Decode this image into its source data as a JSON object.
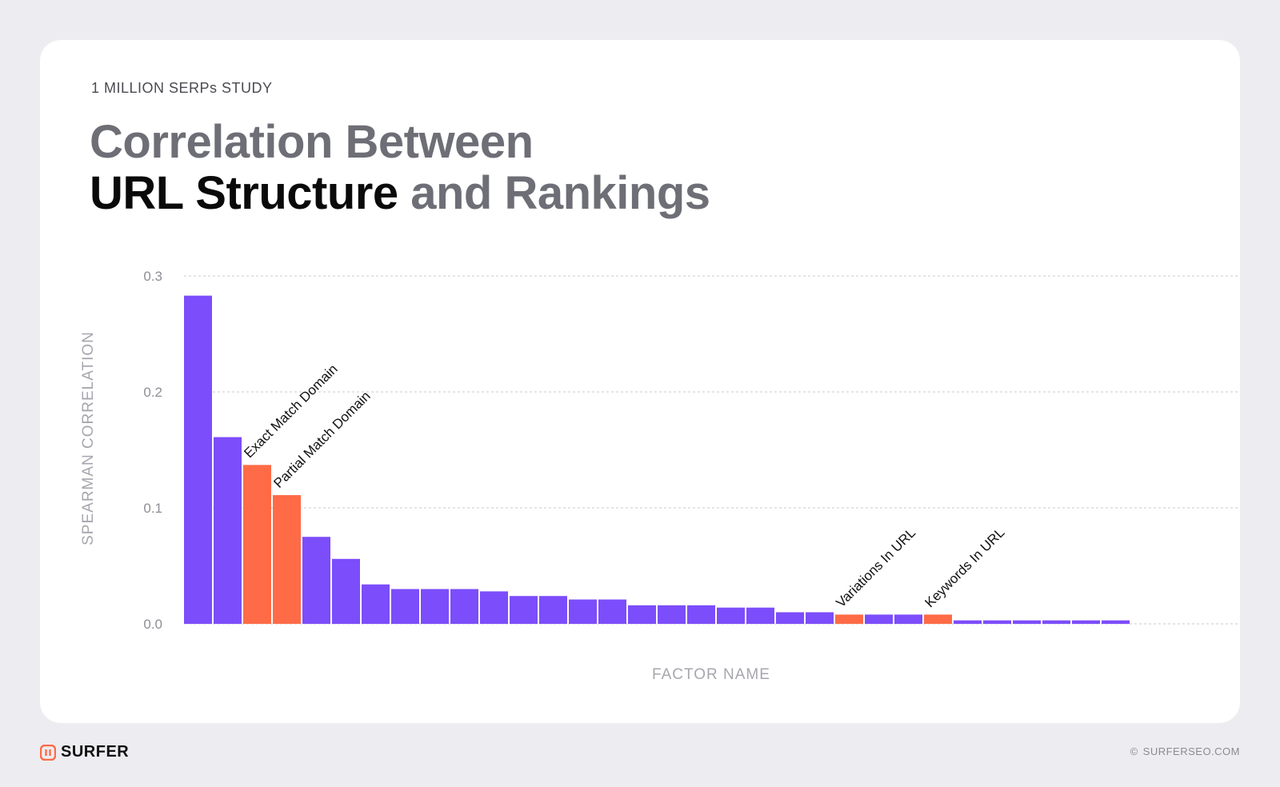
{
  "header": {
    "eyebrow": "1 MILLION SERPs STUDY",
    "title_line1": "Correlation Between",
    "title_strong": "URL Structure",
    "title_rest": " and Rankings"
  },
  "footer": {
    "brand": "SURFER",
    "copyright_symbol": "©",
    "copyright": "SURFERSEO.COM"
  },
  "colors": {
    "bar": "#7c4dfa",
    "highlight": "#ff6b47",
    "card": "#ffffff",
    "background": "#ededf1"
  },
  "chart_data": {
    "type": "bar",
    "xlabel": "FACTOR NAME",
    "ylabel": "SPEARMAN CORRELATION",
    "ylim": [
      0,
      0.3
    ],
    "yticks": [
      "0.0",
      "0.1",
      "0.2",
      "0.3"
    ],
    "grid": true,
    "values": [
      0.283,
      0.161,
      0.137,
      0.111,
      0.075,
      0.056,
      0.034,
      0.03,
      0.03,
      0.03,
      0.028,
      0.024,
      0.024,
      0.021,
      0.021,
      0.016,
      0.016,
      0.016,
      0.014,
      0.014,
      0.01,
      0.01,
      0.008,
      0.008,
      0.008,
      0.008,
      0.003,
      0.003,
      0.003,
      0.003,
      0.003,
      0.003
    ],
    "highlighted": [
      2,
      3,
      22,
      25
    ],
    "annotations": [
      {
        "index": 2,
        "label": "Exact Match Domain"
      },
      {
        "index": 3,
        "label": "Partial Match Domain"
      },
      {
        "index": 22,
        "label": "Variations In URL"
      },
      {
        "index": 25,
        "label": "Keywords In URL"
      }
    ]
  }
}
